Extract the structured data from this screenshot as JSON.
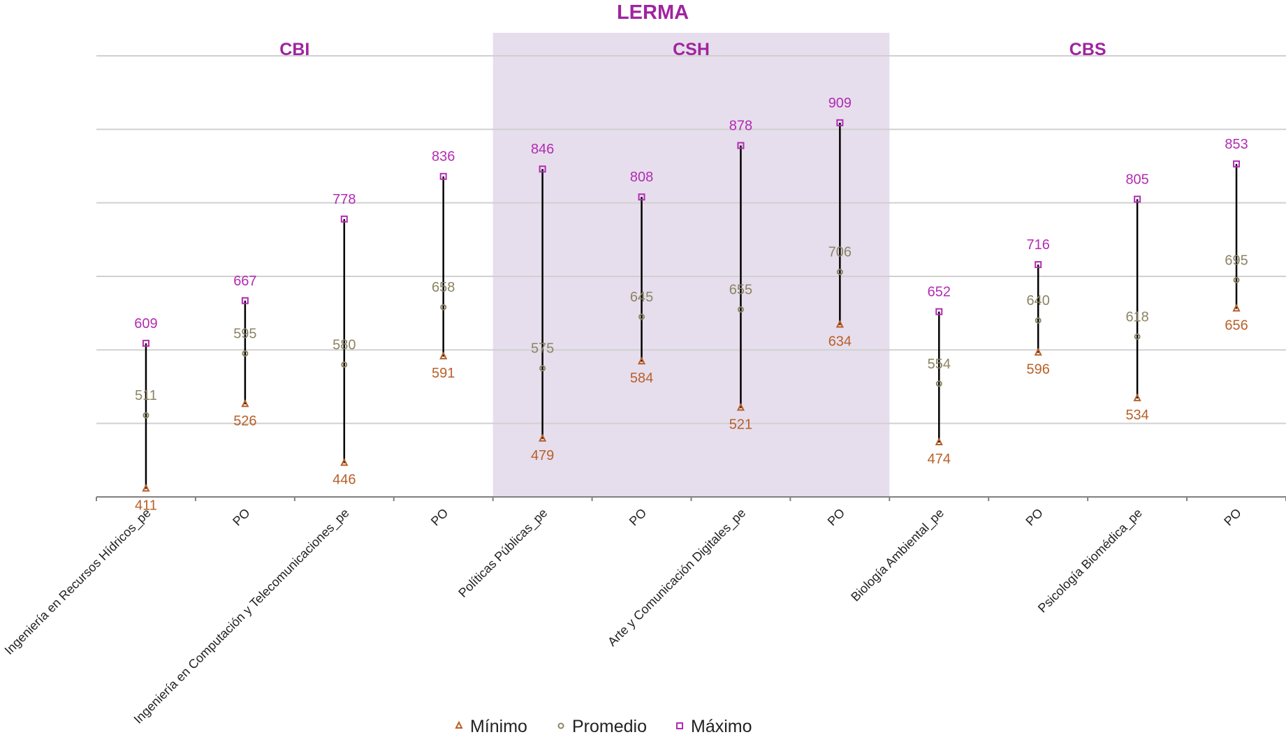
{
  "chart_data": {
    "type": "scatter",
    "title": "LERMA",
    "groups": [
      {
        "label": "CBI",
        "highlighted": false
      },
      {
        "label": "CSH",
        "highlighted": true
      },
      {
        "label": "CBS",
        "highlighted": false
      }
    ],
    "categories": [
      "Ingeniería en Recursos Hídricos_pe",
      "PO",
      "Ingeniería en Computación y Telecomunicaciones_pe",
      "PO",
      "Políticas Públicas_pe",
      "PO",
      "Arte y Comunicación Digitales_pe",
      "PO",
      "Biología Ambiental_pe",
      "PO",
      "Psicología Biomédica_pe",
      "PO"
    ],
    "series": [
      {
        "name": "Mínimo",
        "marker": "triangle",
        "color": "#B8602A",
        "values": [
          411,
          526,
          446,
          591,
          479,
          584,
          521,
          634,
          474,
          596,
          534,
          656
        ]
      },
      {
        "name": "Promedio",
        "marker": "circle",
        "color": "#8C8464",
        "values": [
          511,
          595,
          580,
          658,
          575,
          645,
          655,
          706,
          554,
          640,
          618,
          695
        ]
      },
      {
        "name": "Máximo",
        "marker": "square",
        "color": "#B22CB2",
        "values": [
          609,
          667,
          778,
          836,
          846,
          808,
          878,
          909,
          652,
          716,
          805,
          853
        ]
      }
    ],
    "value_labels": {
      "Mínimo": [
        "411",
        "526",
        "446",
        "591",
        "479",
        "584",
        "521",
        "634",
        "474",
        "596",
        "534",
        "656"
      ],
      "Promedio": [
        "511",
        "595",
        "580",
        "658",
        "575",
        "645",
        "655",
        "706",
        "554",
        "640",
        "618",
        "695"
      ],
      "Máximo": [
        "609",
        "667",
        "778",
        "836",
        "846",
        "808",
        "878",
        "909",
        "652",
        "716",
        "805",
        "853"
      ]
    },
    "ylim": [
      400,
      1000
    ],
    "y_axis_visible": false,
    "grid": true,
    "legend_position": "bottom",
    "colors": {
      "title": "#A0249F",
      "highlight_band": "#E6DEEC",
      "gridline": "#D0D0D0",
      "range_line": "#000000"
    }
  }
}
